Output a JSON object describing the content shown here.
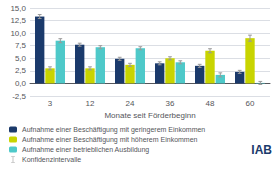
{
  "chart_data": {
    "type": "bar",
    "categories": [
      3,
      12,
      24,
      36,
      48,
      60
    ],
    "xlabel": "Monate seit Förderbeginn",
    "series": [
      {
        "name": "Aufnahme einer Beschäftigung mit geringerem Einkommen",
        "color": "#1b3a6b",
        "values": [
          13.3,
          7.7,
          4.9,
          4.0,
          3.5,
          2.3
        ],
        "errors": [
          0.4,
          0.3,
          0.3,
          0.3,
          0.3,
          0.3
        ]
      },
      {
        "name": "Aufnahme einer Beschäftigung mit höherem Einkommen",
        "color": "#c8d400",
        "values": [
          3.0,
          3.0,
          3.7,
          5.0,
          6.5,
          9.0
        ],
        "errors": [
          0.3,
          0.3,
          0.3,
          0.3,
          0.4,
          0.6
        ]
      },
      {
        "name": "Aufnahme einer betrieblichen Ausbildung",
        "color": "#4ec9c9",
        "values": [
          8.5,
          7.2,
          7.0,
          4.2,
          1.7,
          0.1
        ],
        "errors": [
          0.4,
          0.3,
          0.3,
          0.3,
          0.4,
          0.3
        ]
      }
    ],
    "error_bars": {
      "name": "Konfidenzintervalle",
      "color": "#999999"
    },
    "ylim": [
      -2.5,
      15.0
    ],
    "yticks": [
      {
        "value": -2.5,
        "label": "-2,5"
      },
      {
        "value": 0.0,
        "label": "0,0"
      },
      {
        "value": 2.5,
        "label": "2,5"
      },
      {
        "value": 5.0,
        "label": "5,0"
      },
      {
        "value": 7.5,
        "label": "7,5"
      },
      {
        "value": 10.0,
        "label": "10,0"
      },
      {
        "value": 12.5,
        "label": "12,5"
      },
      {
        "value": 15.0,
        "label": "15,0"
      }
    ],
    "grid": true,
    "legend": "bottom",
    "annotations": [
      {
        "text": "IAB",
        "color": "#1b3a6b"
      }
    ]
  }
}
